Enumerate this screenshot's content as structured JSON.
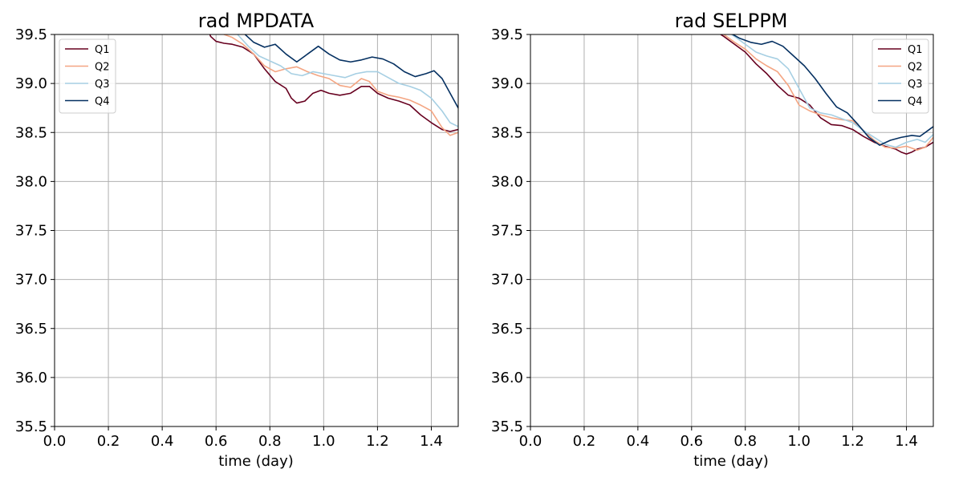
{
  "colors": {
    "Q1": "#67001f",
    "Q2": "#f4a582",
    "Q3": "#a6cfe3",
    "Q4": "#053061",
    "grid": "#b0b0b0"
  },
  "chart_data": [
    {
      "type": "line",
      "title": "rad MPDATA",
      "xlabel": "time (day)",
      "ylabel": "",
      "xlim": [
        0.0,
        1.5
      ],
      "ylim": [
        35.5,
        39.5
      ],
      "xticks": [
        "0.0",
        "0.2",
        "0.4",
        "0.6",
        "0.8",
        "1.0",
        "1.2",
        "1.4"
      ],
      "yticks": [
        "35.5",
        "36.0",
        "36.5",
        "37.0",
        "37.5",
        "38.0",
        "38.5",
        "39.0",
        "39.5"
      ],
      "grid": true,
      "legend": "top-left",
      "series": [
        {
          "name": "Q1",
          "x": [
            0.57,
            0.58,
            0.6,
            0.63,
            0.66,
            0.7,
            0.74,
            0.78,
            0.82,
            0.86,
            0.88,
            0.9,
            0.93,
            0.96,
            0.99,
            1.02,
            1.06,
            1.1,
            1.14,
            1.17,
            1.2,
            1.24,
            1.28,
            1.32,
            1.36,
            1.4,
            1.44,
            1.47,
            1.5
          ],
          "y": [
            39.55,
            39.48,
            39.43,
            39.41,
            39.4,
            39.37,
            39.3,
            39.15,
            39.02,
            38.95,
            38.85,
            38.8,
            38.82,
            38.9,
            38.93,
            38.9,
            38.88,
            38.9,
            38.97,
            38.97,
            38.9,
            38.85,
            38.82,
            38.78,
            38.68,
            38.6,
            38.53,
            38.51,
            38.53
          ]
        },
        {
          "name": "Q2",
          "x": [
            0.61,
            0.63,
            0.66,
            0.7,
            0.74,
            0.78,
            0.82,
            0.86,
            0.9,
            0.94,
            0.98,
            1.02,
            1.06,
            1.1,
            1.14,
            1.17,
            1.2,
            1.24,
            1.28,
            1.32,
            1.36,
            1.4,
            1.44,
            1.47,
            1.5
          ],
          "y": [
            39.55,
            39.5,
            39.47,
            39.4,
            39.3,
            39.18,
            39.12,
            39.15,
            39.17,
            39.12,
            39.08,
            39.05,
            38.98,
            38.96,
            39.05,
            39.02,
            38.92,
            38.88,
            38.86,
            38.83,
            38.78,
            38.72,
            38.55,
            38.47,
            38.5
          ]
        },
        {
          "name": "Q3",
          "x": [
            0.65,
            0.68,
            0.72,
            0.76,
            0.8,
            0.84,
            0.88,
            0.92,
            0.96,
            1.0,
            1.04,
            1.08,
            1.12,
            1.16,
            1.2,
            1.24,
            1.28,
            1.32,
            1.36,
            1.4,
            1.44,
            1.47,
            1.5
          ],
          "y": [
            39.55,
            39.5,
            39.38,
            39.28,
            39.23,
            39.18,
            39.1,
            39.08,
            39.12,
            39.1,
            39.08,
            39.06,
            39.1,
            39.12,
            39.12,
            39.06,
            39.0,
            38.97,
            38.93,
            38.85,
            38.72,
            38.6,
            38.56
          ]
        },
        {
          "name": "Q4",
          "x": [
            0.68,
            0.7,
            0.74,
            0.78,
            0.82,
            0.86,
            0.9,
            0.94,
            0.98,
            1.02,
            1.06,
            1.1,
            1.14,
            1.18,
            1.22,
            1.26,
            1.3,
            1.34,
            1.38,
            1.41,
            1.44,
            1.47,
            1.5
          ],
          "y": [
            39.55,
            39.52,
            39.42,
            39.37,
            39.4,
            39.3,
            39.22,
            39.3,
            39.38,
            39.3,
            39.24,
            39.22,
            39.24,
            39.27,
            39.25,
            39.2,
            39.12,
            39.07,
            39.1,
            39.13,
            39.05,
            38.9,
            38.75
          ]
        }
      ]
    },
    {
      "type": "line",
      "title": "rad SELPPM",
      "xlabel": "time (day)",
      "ylabel": "",
      "xlim": [
        0.0,
        1.5
      ],
      "ylim": [
        35.5,
        39.5
      ],
      "xticks": [
        "0.0",
        "0.2",
        "0.4",
        "0.6",
        "0.8",
        "1.0",
        "1.2",
        "1.4"
      ],
      "yticks": [
        "35.5",
        "36.0",
        "36.5",
        "37.0",
        "37.5",
        "38.0",
        "38.5",
        "39.0",
        "39.5"
      ],
      "grid": true,
      "legend": "top-right",
      "series": [
        {
          "name": "Q1",
          "x": [
            0.68,
            0.72,
            0.76,
            0.8,
            0.84,
            0.88,
            0.92,
            0.96,
            1.0,
            1.04,
            1.08,
            1.12,
            1.16,
            1.2,
            1.24,
            1.28,
            1.32,
            1.36,
            1.38,
            1.4,
            1.42,
            1.44,
            1.47,
            1.5
          ],
          "y": [
            39.55,
            39.48,
            39.4,
            39.32,
            39.2,
            39.1,
            38.98,
            38.88,
            38.85,
            38.78,
            38.65,
            38.58,
            38.57,
            38.53,
            38.46,
            38.4,
            38.36,
            38.33,
            38.3,
            38.28,
            38.3,
            38.33,
            38.35,
            38.4
          ]
        },
        {
          "name": "Q2",
          "x": [
            0.68,
            0.72,
            0.76,
            0.8,
            0.84,
            0.88,
            0.92,
            0.96,
            1.0,
            1.04,
            1.08,
            1.12,
            1.16,
            1.2,
            1.24,
            1.28,
            1.32,
            1.36,
            1.4,
            1.44,
            1.47,
            1.5
          ],
          "y": [
            39.55,
            39.5,
            39.42,
            39.35,
            39.25,
            39.18,
            39.12,
            38.98,
            38.78,
            38.72,
            38.68,
            38.65,
            38.63,
            38.62,
            38.52,
            38.42,
            38.35,
            38.34,
            38.36,
            38.32,
            38.35,
            38.45
          ]
        },
        {
          "name": "Q3",
          "x": [
            0.72,
            0.76,
            0.8,
            0.84,
            0.88,
            0.92,
            0.96,
            1.0,
            1.04,
            1.08,
            1.12,
            1.16,
            1.2,
            1.24,
            1.28,
            1.32,
            1.36,
            1.4,
            1.44,
            1.47,
            1.5
          ],
          "y": [
            39.55,
            39.48,
            39.4,
            39.32,
            39.28,
            39.25,
            39.15,
            38.95,
            38.75,
            38.7,
            38.68,
            38.64,
            38.6,
            38.52,
            38.45,
            38.38,
            38.35,
            38.4,
            38.43,
            38.4,
            38.48
          ]
        },
        {
          "name": "Q4",
          "x": [
            0.74,
            0.78,
            0.82,
            0.86,
            0.9,
            0.94,
            0.98,
            1.02,
            1.06,
            1.1,
            1.14,
            1.18,
            1.22,
            1.26,
            1.3,
            1.34,
            1.38,
            1.42,
            1.45,
            1.48,
            1.5
          ],
          "y": [
            39.52,
            39.46,
            39.42,
            39.4,
            39.43,
            39.38,
            39.28,
            39.18,
            39.05,
            38.9,
            38.76,
            38.7,
            38.58,
            38.45,
            38.37,
            38.42,
            38.45,
            38.47,
            38.46,
            38.52,
            38.56
          ]
        }
      ]
    }
  ]
}
